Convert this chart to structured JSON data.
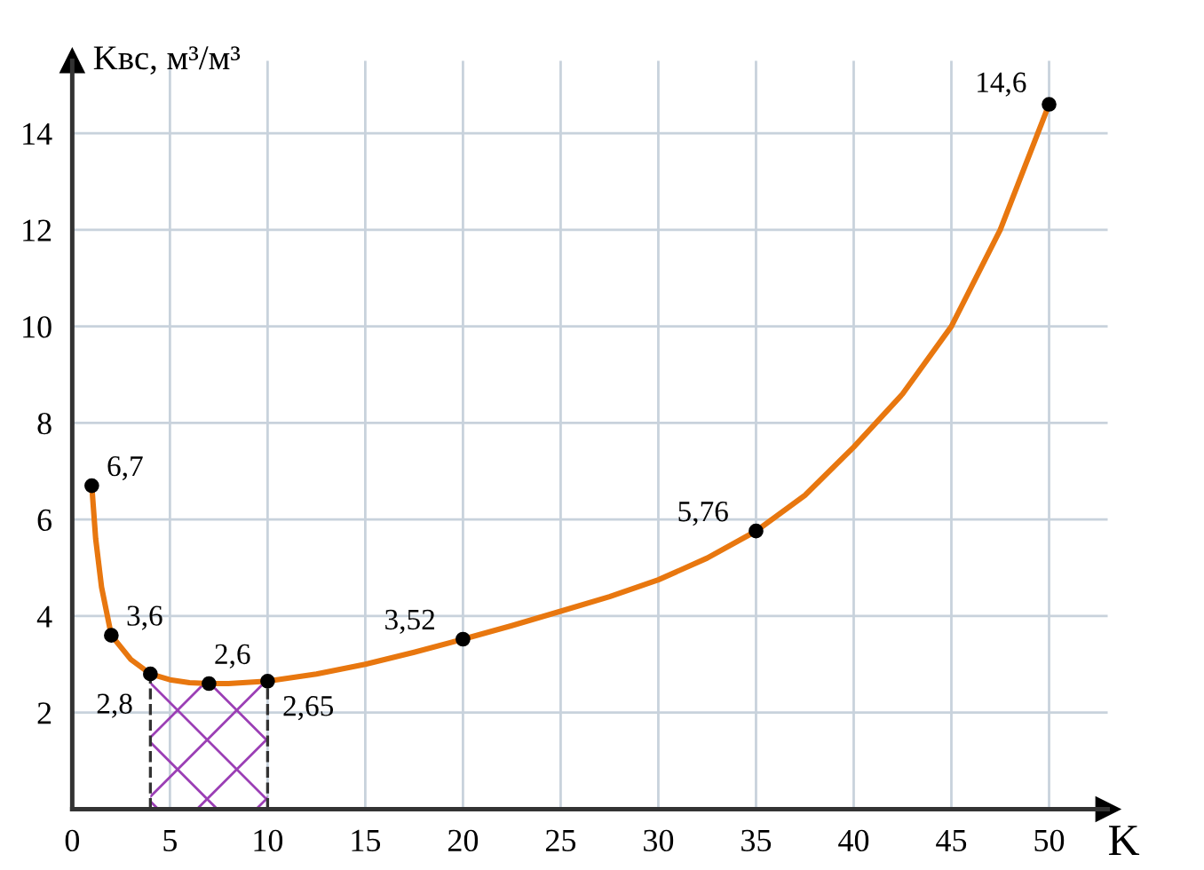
{
  "chart_data": {
    "type": "line",
    "xlabel": "K",
    "ylabel": "Kвс, м³/м³",
    "series": [
      {
        "color": "#e8770f",
        "x": [
          1,
          1.2,
          1.5,
          2,
          3,
          4,
          5,
          6,
          7,
          8,
          10,
          12.5,
          15,
          17.5,
          20,
          22.5,
          25,
          27.5,
          30,
          32.5,
          35,
          37.5,
          40,
          42.5,
          45,
          47.5,
          50
        ],
        "values": [
          6.7,
          5.6,
          4.6,
          3.6,
          3.1,
          2.8,
          2.68,
          2.62,
          2.6,
          2.6,
          2.65,
          2.8,
          3.0,
          3.25,
          3.52,
          3.8,
          4.1,
          4.4,
          4.75,
          5.2,
          5.76,
          6.5,
          7.5,
          8.6,
          10.0,
          12.0,
          14.6
        ]
      },
      {
        "type": "scatter",
        "marker": "circle",
        "color": "#000000",
        "x": [
          1,
          2,
          4,
          7,
          10,
          20,
          35,
          50
        ],
        "values": [
          6.7,
          3.6,
          2.8,
          2.6,
          2.65,
          3.52,
          5.76,
          14.6
        ],
        "value_labels": [
          "6,7",
          "3,6",
          "2,8",
          "2,6",
          "2,65",
          "3,52",
          "5,76",
          "14,6"
        ]
      }
    ],
    "line_style": "solid",
    "bands": [
      {
        "axis": "x",
        "from": 4,
        "to": 10,
        "color": "#9b3fb5"
      }
    ],
    "xlim": [
      0,
      53
    ],
    "ylim": [
      0,
      15.5
    ],
    "xticks": [
      0,
      5,
      10,
      15,
      20,
      25,
      30,
      35,
      40,
      45,
      50
    ],
    "yticks": [
      2,
      4,
      6,
      8,
      10,
      12,
      14
    ],
    "grid": true
  }
}
